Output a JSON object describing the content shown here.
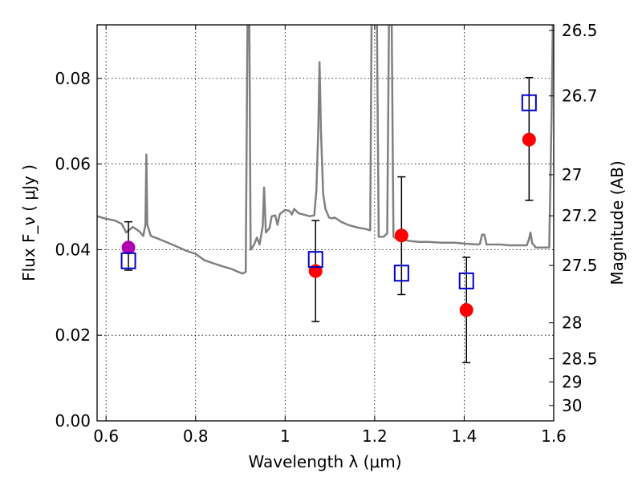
{
  "chart_data": {
    "type": "scatter",
    "title": "",
    "xlabel": "Wavelength  λ (μm)",
    "ylabel": "Flux  F_ν  ( μJy )",
    "ylabel_right": "Magnitude (AB)",
    "xlim": [
      0.58,
      1.6
    ],
    "ylim": [
      0.0,
      0.0925
    ],
    "grid": true,
    "x_ticks": [
      {
        "value": 0.6,
        "label": "0.6"
      },
      {
        "value": 0.8,
        "label": "0.8"
      },
      {
        "value": 1.0,
        "label": "1"
      },
      {
        "value": 1.2,
        "label": "1.2"
      },
      {
        "value": 1.4,
        "label": "1.4"
      },
      {
        "value": 1.6,
        "label": "1.6"
      }
    ],
    "y_ticks": [
      {
        "value": 0.0,
        "label": "0.00"
      },
      {
        "value": 0.02,
        "label": "0.02"
      },
      {
        "value": 0.04,
        "label": "0.04"
      },
      {
        "value": 0.06,
        "label": "0.06"
      },
      {
        "value": 0.08,
        "label": "0.08"
      }
    ],
    "magnitude_ticks": [
      {
        "label": "26.5",
        "flux": 0.0912
      },
      {
        "label": "26.7",
        "flux": 0.0759
      },
      {
        "label": "27",
        "flux": 0.0575
      },
      {
        "label": "27.2",
        "flux": 0.0479
      },
      {
        "label": "27.5",
        "flux": 0.0363
      },
      {
        "label": "28",
        "flux": 0.0229
      },
      {
        "label": "28.5",
        "flux": 0.0145
      },
      {
        "label": "29",
        "flux": 0.0091
      },
      {
        "label": "30",
        "flux": 0.0036
      }
    ],
    "series": [
      {
        "marker": "circle",
        "color": "#ff0000",
        "points": [
          {
            "x": 1.068,
            "y": 0.035,
            "err_low": 0.0232,
            "err_high": 0.0468
          },
          {
            "x": 1.26,
            "y": 0.0433,
            "err_low": 0.0295,
            "err_high": 0.057
          },
          {
            "x": 1.405,
            "y": 0.0259,
            "err_low": 0.0136,
            "err_high": 0.0382
          },
          {
            "x": 1.545,
            "y": 0.0657,
            "err_low": 0.0515,
            "err_high": 0.0802
          }
        ]
      },
      {
        "marker": "circle",
        "color": "#b000b0",
        "points": [
          {
            "x": 0.65,
            "y": 0.0405,
            "err_low": 0.0352,
            "err_high": 0.0465
          }
        ]
      },
      {
        "marker": "open-square",
        "color": "#0000cc",
        "points": [
          {
            "x": 0.65,
            "y": 0.0374
          },
          {
            "x": 1.068,
            "y": 0.0377
          },
          {
            "x": 1.26,
            "y": 0.0345
          },
          {
            "x": 1.405,
            "y": 0.0327
          },
          {
            "x": 1.545,
            "y": 0.0743
          }
        ]
      }
    ],
    "template_spectrum": {
      "color": "#808080",
      "points": [
        [
          0.58,
          0.0478
        ],
        [
          0.6,
          0.0472
        ],
        [
          0.62,
          0.0468
        ],
        [
          0.635,
          0.046
        ],
        [
          0.645,
          0.044
        ],
        [
          0.66,
          0.0453
        ],
        [
          0.675,
          0.0442
        ],
        [
          0.683,
          0.0432
        ],
        [
          0.688,
          0.0458
        ],
        [
          0.69,
          0.0622
        ],
        [
          0.692,
          0.0458
        ],
        [
          0.7,
          0.0432
        ],
        [
          0.72,
          0.0424
        ],
        [
          0.75,
          0.0411
        ],
        [
          0.78,
          0.0397
        ],
        [
          0.8,
          0.039
        ],
        [
          0.82,
          0.0375
        ],
        [
          0.84,
          0.0368
        ],
        [
          0.86,
          0.0361
        ],
        [
          0.88,
          0.0355
        ],
        [
          0.895,
          0.0348
        ],
        [
          0.905,
          0.0344
        ],
        [
          0.912,
          0.0348
        ],
        [
          0.916,
          0.093
        ],
        [
          0.92,
          0.093
        ],
        [
          0.923,
          0.04
        ],
        [
          0.93,
          0.041
        ],
        [
          0.937,
          0.0428
        ],
        [
          0.943,
          0.0412
        ],
        [
          0.95,
          0.0455
        ],
        [
          0.953,
          0.0545
        ],
        [
          0.957,
          0.044
        ],
        [
          0.965,
          0.045
        ],
        [
          0.97,
          0.0478
        ],
        [
          0.978,
          0.048
        ],
        [
          0.983,
          0.0458
        ],
        [
          0.988,
          0.0483
        ],
        [
          1.0,
          0.0493
        ],
        [
          1.01,
          0.049
        ],
        [
          1.015,
          0.0482
        ],
        [
          1.02,
          0.0495
        ],
        [
          1.03,
          0.0485
        ],
        [
          1.055,
          0.0478
        ],
        [
          1.065,
          0.048
        ],
        [
          1.07,
          0.054
        ],
        [
          1.074,
          0.068
        ],
        [
          1.077,
          0.0838
        ],
        [
          1.08,
          0.068
        ],
        [
          1.085,
          0.053
        ],
        [
          1.09,
          0.0495
        ],
        [
          1.098,
          0.0475
        ],
        [
          1.105,
          0.0473
        ],
        [
          1.11,
          0.0475
        ],
        [
          1.115,
          0.0472
        ],
        [
          1.125,
          0.0465
        ],
        [
          1.14,
          0.0458
        ],
        [
          1.16,
          0.0452
        ],
        [
          1.18,
          0.0448
        ],
        [
          1.19,
          0.0445
        ],
        [
          1.193,
          0.093
        ],
        [
          1.205,
          0.093
        ],
        [
          1.209,
          0.043
        ],
        [
          1.22,
          0.043
        ],
        [
          1.228,
          0.0438
        ],
        [
          1.232,
          0.093
        ],
        [
          1.238,
          0.093
        ],
        [
          1.242,
          0.043
        ],
        [
          1.25,
          0.0425
        ],
        [
          1.28,
          0.042
        ],
        [
          1.3,
          0.0418
        ],
        [
          1.32,
          0.0418
        ],
        [
          1.35,
          0.0416
        ],
        [
          1.38,
          0.0416
        ],
        [
          1.4,
          0.0414
        ],
        [
          1.43,
          0.0412
        ],
        [
          1.435,
          0.0413
        ],
        [
          1.44,
          0.0435
        ],
        [
          1.445,
          0.0435
        ],
        [
          1.45,
          0.0412
        ],
        [
          1.48,
          0.0412
        ],
        [
          1.5,
          0.041
        ],
        [
          1.53,
          0.041
        ],
        [
          1.54,
          0.041
        ],
        [
          1.545,
          0.0425
        ],
        [
          1.548,
          0.044
        ],
        [
          1.552,
          0.0415
        ],
        [
          1.56,
          0.0405
        ],
        [
          1.58,
          0.0405
        ],
        [
          1.59,
          0.0405
        ],
        [
          1.595,
          0.07
        ],
        [
          1.598,
          0.093
        ]
      ]
    }
  }
}
